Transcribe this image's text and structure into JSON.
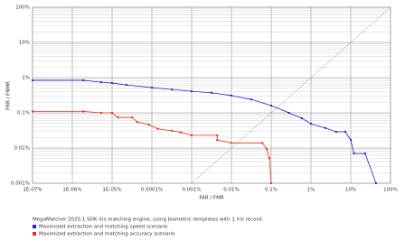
{
  "chart_data": {
    "type": "line",
    "x_label": "FAR / FMR",
    "y_label": "FRR / FNMR",
    "legend_title": "MegaMatcher 2025.1 SDK iris matching engine, using biometric templates with 1 iris record:",
    "log_x": true,
    "log_y": true,
    "grid": true,
    "legend_position": "bottom",
    "xlim": [
      1e-07,
      100
    ],
    "ylim": [
      0.001,
      100
    ],
    "xticks": [
      {
        "value": 1e-07,
        "label": "1E-07%"
      },
      {
        "value": 1e-06,
        "label": "1E-06%"
      },
      {
        "value": 1e-05,
        "label": "1E-05%"
      },
      {
        "value": 0.0001,
        "label": "0.0001%"
      },
      {
        "value": 0.001,
        "label": "0.001%"
      },
      {
        "value": 0.01,
        "label": "0.01%"
      },
      {
        "value": 0.1,
        "label": "0.1%"
      },
      {
        "value": 1,
        "label": "1%"
      },
      {
        "value": 10,
        "label": "10%"
      },
      {
        "value": 100,
        "label": "100%"
      }
    ],
    "yticks": [
      {
        "value": 0.001,
        "label": "0.001%"
      },
      {
        "value": 0.01,
        "label": "0.01%"
      },
      {
        "value": 0.1,
        "label": "0.1%"
      },
      {
        "value": 1,
        "label": "1%"
      },
      {
        "value": 10,
        "label": "10%"
      },
      {
        "value": 100,
        "label": "100%"
      }
    ],
    "series": [
      {
        "name": "Maximized extraction and matching speed scenario",
        "color": "#2323d6",
        "x": [
          1e-07,
          1.9e-06,
          5.3e-06,
          1e-05,
          2.3e-05,
          0.0001,
          0.00032,
          0.001,
          0.0032,
          0.01,
          0.032,
          0.1,
          0.28,
          0.59,
          1,
          2.3,
          4.3,
          7.3,
          10,
          12,
          23,
          43
        ],
        "values": [
          0.84,
          0.84,
          0.74,
          0.7,
          0.62,
          0.52,
          0.46,
          0.41,
          0.37,
          0.31,
          0.24,
          0.16,
          0.1,
          0.07,
          0.049,
          0.037,
          0.029,
          0.029,
          0.017,
          0.007,
          0.007,
          0.001
        ]
      },
      {
        "name": "Maximized extraction and matching accuracy scenario",
        "color": "#e8301c",
        "x": [
          1e-07,
          1.9e-06,
          5.3e-06,
          1e-05,
          1.4e-05,
          3.2e-05,
          4.3e-05,
          8.5e-05,
          0.00014,
          0.00032,
          0.00053,
          0.001,
          0.0044,
          0.0044,
          0.01,
          0.06,
          0.077,
          0.09,
          0.1
        ],
        "values": [
          0.11,
          0.11,
          0.1,
          0.1,
          0.074,
          0.074,
          0.055,
          0.046,
          0.035,
          0.031,
          0.028,
          0.023,
          0.023,
          0.017,
          0.014,
          0.014,
          0.0094,
          0.0052,
          0.001
        ]
      }
    ]
  }
}
